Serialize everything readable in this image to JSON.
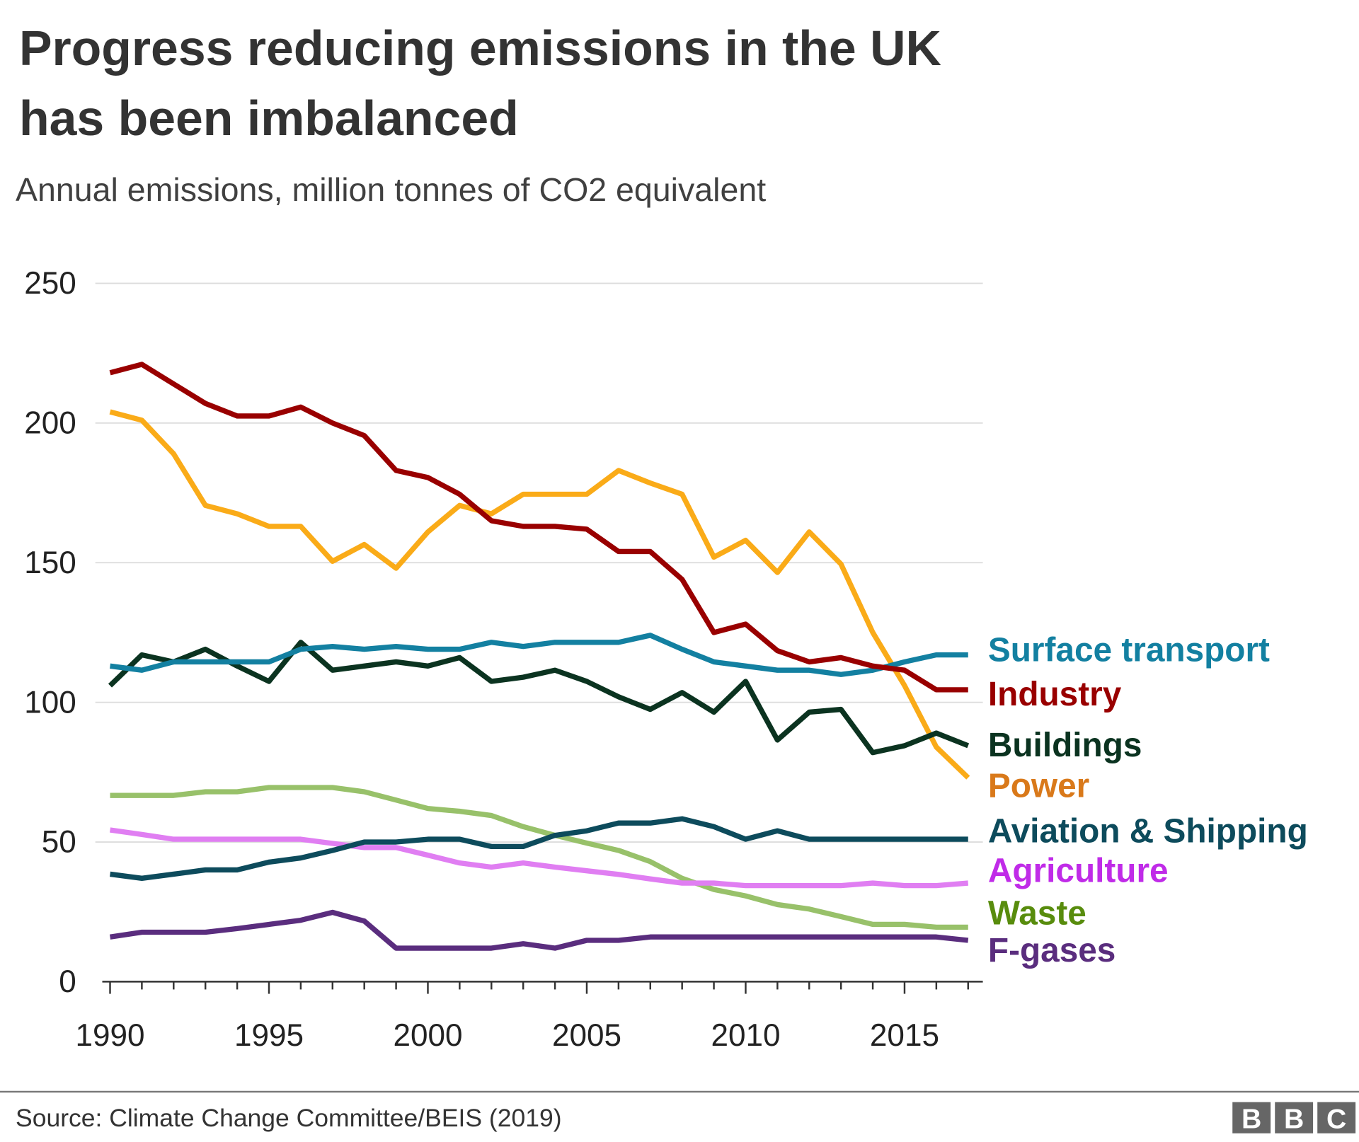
{
  "title_lines": [
    "Progress reducing emissions in the UK",
    "has been imbalanced"
  ],
  "subtitle": "Annual emissions, million tonnes of CO2 equivalent",
  "source": "Source: Climate Change Committee/BEIS (2019)",
  "logo": "BBC",
  "chart_data": {
    "type": "line",
    "title": "Progress reducing emissions in the UK has been imbalanced",
    "subtitle": "Annual emissions, million tonnes of CO2 equivalent",
    "xlabel": "",
    "ylabel": "",
    "xlim": [
      1990,
      2017
    ],
    "ylim": [
      0,
      250
    ],
    "grid": true,
    "legend": "direct labels right of lines",
    "x_ticks": [
      "1990",
      "1995",
      "2000",
      "2005",
      "2010",
      "2015"
    ],
    "y_ticks": [
      "0",
      "50",
      "100",
      "150",
      "200",
      "250"
    ],
    "x": [
      1990,
      1991,
      1992,
      1993,
      1994,
      1995,
      1996,
      1997,
      1998,
      1999,
      2000,
      2001,
      2002,
      2003,
      2004,
      2005,
      2006,
      2007,
      2008,
      2009,
      2010,
      2011,
      2012,
      2013,
      2014,
      2015,
      2016,
      2017
    ],
    "series": [
      {
        "name": "Surface transport",
        "color": "#1380A1",
        "label_color": "#1380A1",
        "values": [
          113,
          111.5,
          114.5,
          114.5,
          114.5,
          114.5,
          119,
          120,
          119,
          120,
          119,
          119,
          121.5,
          120,
          121.5,
          121.5,
          121.5,
          124,
          119,
          114.5,
          113,
          111.5,
          111.5,
          110,
          111.5,
          114.5,
          117,
          117
        ]
      },
      {
        "name": "Industry",
        "color": "#990000",
        "label_color": "#990000",
        "values": [
          218,
          221,
          214,
          207,
          202.5,
          202.5,
          205.7,
          200,
          195.5,
          183,
          180.5,
          174.5,
          165,
          163,
          163,
          162,
          154,
          154,
          144,
          125,
          128,
          118.5,
          114.5,
          116,
          113,
          111.5,
          104.5,
          104.5
        ]
      },
      {
        "name": "Buildings",
        "color": "#0B3320",
        "label_color": "#0B3320",
        "values": [
          106,
          117,
          114.5,
          119,
          113,
          107.5,
          121.5,
          111.5,
          113,
          114.5,
          113,
          116,
          107.5,
          109,
          111.5,
          107.5,
          102,
          97.5,
          103.5,
          96.5,
          107.5,
          86.5,
          96.5,
          97.5,
          82,
          84.5,
          89,
          84.5
        ]
      },
      {
        "name": "Power",
        "color": "#FAAB18",
        "label_color": "#D9791A",
        "values": [
          204,
          201,
          189,
          170.5,
          167.5,
          163,
          163,
          150.5,
          156.5,
          148,
          161,
          170.5,
          167.5,
          174.5,
          174.5,
          174.5,
          183,
          178.5,
          174.5,
          152,
          158,
          146.5,
          161,
          149.5,
          125,
          106,
          84,
          73
        ]
      },
      {
        "name": "Aviation & Shipping",
        "color": "#0D4B5C",
        "label_color": "#0D4B5C",
        "values": [
          38.5,
          37,
          38.5,
          40,
          40,
          42.8,
          44.3,
          47,
          50,
          50,
          51,
          51,
          48.4,
          48.4,
          52.4,
          54,
          56.8,
          56.8,
          58.3,
          55.5,
          51,
          54,
          51,
          51,
          51,
          51,
          51,
          51
        ]
      },
      {
        "name": "Agriculture",
        "color": "#E07EF2",
        "label_color": "#C02BE8",
        "values": [
          54.3,
          52.7,
          51,
          51,
          51,
          51,
          51,
          49.5,
          48,
          48,
          45.3,
          42.5,
          41,
          42.5,
          41,
          39.7,
          38.4,
          36.8,
          35.3,
          35.3,
          34.4,
          34.4,
          34.4,
          34.4,
          35.3,
          34.4,
          34.4,
          35.3
        ]
      },
      {
        "name": "Waste",
        "color": "#98C16A",
        "label_color": "#588C0D",
        "values": [
          66.7,
          66.7,
          66.7,
          68,
          68,
          69.5,
          69.5,
          69.5,
          68,
          65,
          62,
          61,
          59.5,
          55.5,
          52.4,
          49.6,
          47,
          43,
          37,
          33,
          30.7,
          27.6,
          26,
          23.3,
          20.5,
          20.5,
          19.5,
          19.5
        ]
      },
      {
        "name": "F-gases",
        "color": "#5A2D7E",
        "label_color": "#5A2D7E",
        "values": [
          16,
          17.7,
          17.7,
          17.7,
          19,
          20.5,
          22,
          24.8,
          21.7,
          12,
          12,
          12,
          12,
          13.6,
          12,
          14.8,
          14.8,
          16,
          16,
          16,
          16,
          16,
          16,
          16,
          16,
          16,
          16,
          14.8
        ]
      }
    ]
  }
}
